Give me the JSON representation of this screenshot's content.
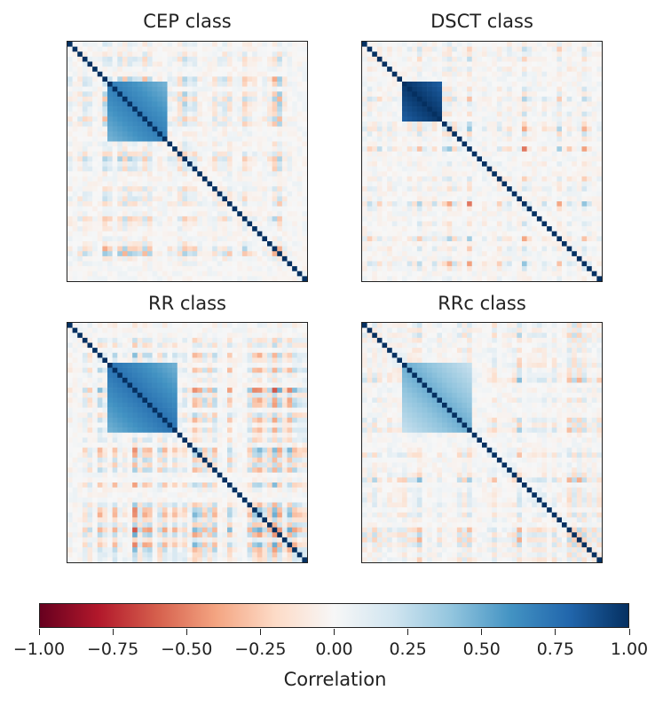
{
  "chart_data": {
    "type": "heatmap",
    "panels": [
      {
        "id": "cep",
        "title": "CEP class",
        "size": 48,
        "seed": 11,
        "blocks": [
          [
            8,
            20,
            0.7
          ]
        ]
      },
      {
        "id": "dsct",
        "title": "DSCT class",
        "size": 48,
        "seed": 23,
        "blocks": [
          [
            8,
            16,
            0.98
          ]
        ]
      },
      {
        "id": "rr",
        "title": "RR class",
        "size": 48,
        "seed": 37,
        "blocks": [
          [
            8,
            22,
            0.75
          ]
        ]
      },
      {
        "id": "rrc",
        "title": "RRc class",
        "size": 48,
        "seed": 53,
        "blocks": [
          [
            8,
            22,
            0.5
          ]
        ]
      }
    ],
    "colorbar": {
      "label": "Correlation",
      "ticks": [
        "−1.00",
        "−0.75",
        "−0.50",
        "−0.25",
        "0.00",
        "0.25",
        "0.50",
        "0.75",
        "1.00"
      ],
      "range": [
        -1,
        1
      ],
      "cmap": [
        "#67001f",
        "#b2182b",
        "#d6604d",
        "#f4a582",
        "#fddbc7",
        "#f7f7f7",
        "#d1e5f0",
        "#92c5de",
        "#4393c3",
        "#2166ac",
        "#053061"
      ]
    }
  }
}
